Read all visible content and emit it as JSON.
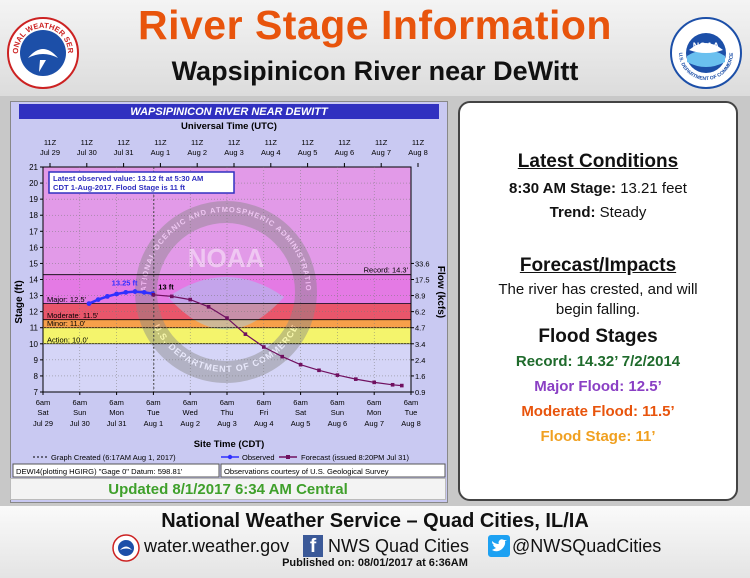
{
  "header": {
    "title": "River Stage Information",
    "subtitle": "Wapsipinicon River near DeWitt",
    "left_seal_text": "NATIONAL WEATHER SERVICE",
    "right_seal_text": "NOAA",
    "right_seal_ring": "U.S. DEPARTMENT OF COMMERCE"
  },
  "graph": {
    "banner": "WAPSIPINICON RIVER NEAR DEWITT",
    "utc_label": "Universal Time (UTC)",
    "site_label": "Site Time (CDT)",
    "stage_axis_label": "Stage (ft)",
    "flow_axis_label": "Flow (kcfs)",
    "latest_box": [
      "Latest observed value: 13.12 ft at 5:30 AM",
      "CDT 1-Aug-2017.  Flood Stage is 11 ft"
    ],
    "legend": {
      "created": "Graph Created (6:17AM Aug 1, 2017)",
      "observed": "Observed",
      "forecast": "Forecast (issued 8:20PM Jul 31)"
    },
    "bottom_left": "DEWI4(plotting HGIRG) \"Gage 0\" Datum: 598.81'",
    "bottom_right": "Observations courtesy of U.S. Geological Survey",
    "watermark_top": "NOAA",
    "watermark_ring_top": "NATIONAL OCEANIC AND ATMOSPHERIC ADMINISTRATION",
    "watermark_ring_bottom": "U.S. DEPARTMENT OF COMMERCE"
  },
  "chart_data": {
    "type": "line",
    "title": "WAPSIPINICON RIVER NEAR DEWITT",
    "xlabel": "Site Time (CDT)",
    "ylabel": "Stage (ft)",
    "y2label": "Flow (kcfs)",
    "ylim": [
      7,
      21
    ],
    "xlim": [
      "2017-07-29T06:00",
      "2017-08-08T06:00"
    ],
    "utc_ticks": [
      {
        "top": "11Z",
        "bottom": "Jul 29"
      },
      {
        "top": "11Z",
        "bottom": "Jul 30"
      },
      {
        "top": "11Z",
        "bottom": "Jul 31"
      },
      {
        "top": "11Z",
        "bottom": "Aug 1"
      },
      {
        "top": "11Z",
        "bottom": "Aug 2"
      },
      {
        "top": "11Z",
        "bottom": "Aug 3"
      },
      {
        "top": "11Z",
        "bottom": "Aug 4"
      },
      {
        "top": "11Z",
        "bottom": "Aug 5"
      },
      {
        "top": "11Z",
        "bottom": "Aug 6"
      },
      {
        "top": "11Z",
        "bottom": "Aug 7"
      },
      {
        "top": "11Z",
        "bottom": "Aug 8"
      }
    ],
    "x_ticks": [
      {
        "time": "6am",
        "day": "Sat",
        "date": "Jul 29"
      },
      {
        "time": "6am",
        "day": "Sun",
        "date": "Jul 30"
      },
      {
        "time": "6am",
        "day": "Mon",
        "date": "Jul 31"
      },
      {
        "time": "6am",
        "day": "Tue",
        "date": "Aug 1"
      },
      {
        "time": "6am",
        "day": "Wed",
        "date": "Aug 2"
      },
      {
        "time": "6am",
        "day": "Thu",
        "date": "Aug 3"
      },
      {
        "time": "6am",
        "day": "Fri",
        "date": "Aug 4"
      },
      {
        "time": "6am",
        "day": "Sat",
        "date": "Aug 5"
      },
      {
        "time": "6am",
        "day": "Sun",
        "date": "Aug 6"
      },
      {
        "time": "6am",
        "day": "Mon",
        "date": "Aug 7"
      },
      {
        "time": "6am",
        "day": "Tue",
        "date": "Aug 8"
      }
    ],
    "y_ticks": [
      7,
      8,
      9,
      10,
      11,
      12,
      13,
      14,
      15,
      16,
      17,
      18,
      19,
      20,
      21
    ],
    "flow_ticks": [
      {
        "stage": 7,
        "label": "0.9"
      },
      {
        "stage": 8,
        "label": "1.6"
      },
      {
        "stage": 9,
        "label": "2.4"
      },
      {
        "stage": 10,
        "label": "3.4"
      },
      {
        "stage": 11,
        "label": "4.7"
      },
      {
        "stage": 12,
        "label": "6.2"
      },
      {
        "stage": 13,
        "label": "8.9"
      },
      {
        "stage": 14,
        "label": "17.5"
      },
      {
        "stage": 15,
        "label": "33.6"
      }
    ],
    "thresholds": [
      {
        "name": "Record",
        "label": "Record: 14.3'",
        "stage": 14.3
      },
      {
        "name": "Major",
        "label": "Major: 12.5'",
        "stage": 12.5
      },
      {
        "name": "Moderate",
        "label": "Moderate: 11.5'",
        "stage": 11.5
      },
      {
        "name": "Minor",
        "label": "Minor: 11.0'",
        "stage": 11.0
      },
      {
        "name": "Action",
        "label": "Action: 10.0'",
        "stage": 10.0
      }
    ],
    "graph_created": "2017-08-01T06:17",
    "annotations": [
      {
        "text": "13.25 ft",
        "x": "2017-07-31T06:00",
        "y": 13.25
      },
      {
        "text": "13 ft",
        "x": "2017-08-01T09:00",
        "y": 13.0
      }
    ],
    "series": [
      {
        "name": "Observed",
        "points": [
          [
            "2017-07-30T12:00",
            12.5
          ],
          [
            "2017-07-30T18:00",
            12.75
          ],
          [
            "2017-07-31T00:00",
            12.95
          ],
          [
            "2017-07-31T06:00",
            13.1
          ],
          [
            "2017-07-31T12:00",
            13.2
          ],
          [
            "2017-07-31T18:00",
            13.25
          ],
          [
            "2017-08-01T00:00",
            13.2
          ],
          [
            "2017-08-01T05:30",
            13.12
          ]
        ]
      },
      {
        "name": "Forecast",
        "points": [
          [
            "2017-08-01T06:00",
            13.05
          ],
          [
            "2017-08-01T18:00",
            12.95
          ],
          [
            "2017-08-02T06:00",
            12.75
          ],
          [
            "2017-08-02T18:00",
            12.3
          ],
          [
            "2017-08-03T06:00",
            11.6
          ],
          [
            "2017-08-03T18:00",
            10.6
          ],
          [
            "2017-08-04T06:00",
            9.8
          ],
          [
            "2017-08-04T18:00",
            9.2
          ],
          [
            "2017-08-05T06:00",
            8.7
          ],
          [
            "2017-08-05T18:00",
            8.35
          ],
          [
            "2017-08-06T06:00",
            8.05
          ],
          [
            "2017-08-06T18:00",
            7.8
          ],
          [
            "2017-08-07T06:00",
            7.6
          ],
          [
            "2017-08-07T18:00",
            7.45
          ],
          [
            "2017-08-08T00:00",
            7.4
          ]
        ]
      }
    ]
  },
  "info": {
    "latest_heading": "Latest Conditions",
    "stage_label": "8:30 AM Stage:",
    "stage_value": "13.21 feet",
    "trend_label": "Trend:",
    "trend_value": "Steady",
    "forecast_heading": "Forecast/Impacts",
    "forecast_text_1": "The river has crested, and will",
    "forecast_text_2": "begin falling.",
    "flood_heading": "Flood Stages",
    "record": "Record: 14.32’  7/2/2014",
    "major": "Major Flood: 12.5’",
    "moderate": "Moderate Flood: 11.5’",
    "flood": "Flood Stage:  11’"
  },
  "updated": "Updated 8/1/2017 6:34 AM Central",
  "footer": {
    "title": "National Weather Service – Quad Cities, IL/IA",
    "website": "water.weather.gov",
    "facebook": "NWS Quad Cities",
    "twitter": "@NWSQuadCities",
    "facebook_glyph": "f",
    "published": "Published on: 08/01/2017 at 6:36AM"
  },
  "colors": {
    "title": "#e8540c",
    "record": "#1f6b2c",
    "major": "#8a3fc4",
    "moderate": "#e8540c",
    "flood": "#f0a020",
    "major_band": "#e47ae4",
    "moderate_band": "#e9566b",
    "minor_band": "#f7a04a",
    "action_band": "#f4f46c",
    "normal_band": "#d5d5f7"
  }
}
